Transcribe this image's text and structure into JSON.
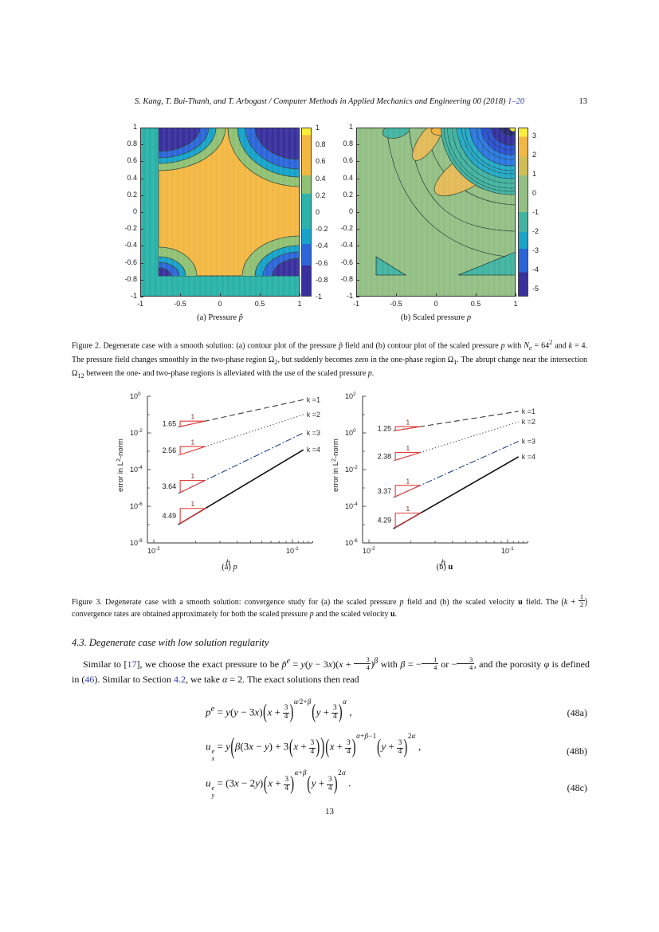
{
  "header": {
    "citation_html": "<i>S. Kang, T. Bui-Thanh, and T. Arbogast / Computer Methods in Applied Mechanics and Engineering 00 (2018) </i><a class='ref' data-name='header-pages-link' data-interactable='true'><i>1–20</i></a>",
    "page_number": "13"
  },
  "palette": {
    "navy": "#38309c",
    "blue": "#2b66d9",
    "cyan": "#16a2c9",
    "teal": "#2db3a9",
    "green": "#8fc073",
    "light_green": "#93bf85",
    "orange": "#f3b843",
    "yellow": "#f9ed3a",
    "triangle_red": "#e03a38",
    "link_blue": "#2e3db5",
    "axis": "#333333"
  },
  "figure2": {
    "sub_captions": [
      "(a)  Pressure <i>p̃</i>",
      "(b)  Scaled pressure <i>p</i>"
    ],
    "caption_html": "Figure 2.  Degenerate case with a smooth solution: (a) contour plot of the pressure <i>p̃</i> field and (b) contour plot of the scaled pressure <i>p</i> with <i>N<sub>e</sub></i> = 64<sup>2</sup> and <i>k</i> = 4. The pressure field changes smoothly in the two-phase region Ω<sub>2</sub>, but suddenly becomes zero in the one-phase region Ω<sub>1</sub>. The abrupt change near the intersection Ω<sub>12</sub> between the one- and two-phase regions is alleviated with the use of the scaled pressure <i>p</i>."
  },
  "figure3": {
    "sub_captions": [
      "(a)  <i>p</i>",
      "(b)  <b>u</b>"
    ],
    "caption_html": "Figure 3.  Degenerate case with a smooth solution: convergence study for (a) the scaled pressure <i>p</i> field and (b) the scaled velocity <b>u</b> field. The <span class='pa'>(</span><i>k</i> + <span class='fr sm'><span class='n'>1</span><span class='d'>2</span></span><span class='pa'>)</span> convergence rates are obtained approximately for both the scaled pressure <i>p</i> and the scaled velocity <b>u</b>."
  },
  "chart_data": [
    {
      "type": "contour",
      "title": "(a) Pressure p̃",
      "xlim": [
        -1,
        1
      ],
      "ylim": [
        -1,
        1
      ],
      "xticks": [
        -1,
        -0.5,
        0,
        0.5,
        1
      ],
      "yticks": [
        1,
        0.8,
        0.6,
        0.4,
        0.2,
        0,
        -0.2,
        -0.4,
        -0.6,
        -0.8,
        -1
      ],
      "colorbar": {
        "ticks": [
          1,
          0.8,
          0.6,
          0.4,
          0.2,
          0,
          -0.2,
          -0.4,
          -0.6,
          -0.8,
          -1
        ],
        "vtop": 1,
        "vbot": -1
      },
      "description": "Orange smooth region in two-phase domain, zero (teal) band along left and bottom one-phase region, dark-blue ring features at the four corners of the interior region"
    },
    {
      "type": "contour",
      "title": "(b) Scaled pressure p",
      "xlim": [
        -1,
        1
      ],
      "ylim": [
        -1,
        1
      ],
      "xticks": [
        -1,
        -0.5,
        0,
        0.5,
        1
      ],
      "yticks": [
        1,
        0.8,
        0.6,
        0.4,
        0.2,
        0,
        -0.2,
        -0.4,
        -0.6,
        -0.8,
        -1
      ],
      "colorbar": {
        "ticks": [
          3,
          2,
          1,
          0,
          -1,
          -2,
          -3,
          -4,
          -5
        ],
        "vtop": 3.4,
        "vbot": -5.4
      },
      "description": "Smooth green field with orange lobes near the top and right, dense negative blue contours converging to the top-right corner, small teal triangles near the bottom corners"
    },
    {
      "type": "line",
      "panel": "a",
      "title": "(a) p",
      "xlabel": "h",
      "ylabel_pre": "error in L",
      "ylabel_sup": "2",
      "ylabel_post": "-norm",
      "xscale": "log",
      "yscale": "log",
      "xtick_exponents": [
        -2,
        -1
      ],
      "ytick_exponents": [
        0,
        -2,
        -4,
        -6,
        -8
      ],
      "ylim_exp": [
        -8,
        0
      ],
      "triangle_h": [
        0.0155,
        0.0235
      ],
      "triangle_top_label": "1",
      "series": [
        {
          "label": "k =1",
          "rate": 1.65,
          "rate_label": "1.65",
          "style": "dashed",
          "points": [
            [
              0.015,
              0.021
            ],
            [
              0.12,
              0.65
            ]
          ]
        },
        {
          "label": "k =2",
          "rate": 2.56,
          "rate_label": "2.56",
          "style": "dotted",
          "points": [
            [
              0.015,
              0.0006
            ],
            [
              0.12,
              0.1
            ]
          ]
        },
        {
          "label": "k =3",
          "rate": 3.64,
          "rate_label": "3.64",
          "style": "dashdot",
          "points": [
            [
              0.015,
              5e-06
            ],
            [
              0.12,
              0.01
            ]
          ]
        },
        {
          "label": "k =4",
          "rate": 4.49,
          "rate_label": "4.49",
          "style": "solid",
          "points": [
            [
              0.015,
              1e-07
            ],
            [
              0.12,
              0.0012
            ]
          ]
        }
      ]
    },
    {
      "type": "line",
      "panel": "b",
      "title": "(b) u",
      "xlabel": "h",
      "ylabel_pre": "error in L",
      "ylabel_sup": "2",
      "ylabel_post": "-norm",
      "xscale": "log",
      "yscale": "log",
      "xtick_exponents": [
        -2,
        -1
      ],
      "ytick_exponents": [
        2,
        0,
        -2,
        -4,
        -6
      ],
      "ylim_exp": [
        -6,
        2
      ],
      "triangle_h": [
        0.0155,
        0.0235
      ],
      "triangle_top_label": "1",
      "series": [
        {
          "label": "k =1",
          "rate": 1.25,
          "rate_label": "1.25",
          "style": "dashed",
          "points": [
            [
              0.015,
              1.3
            ],
            [
              0.12,
              15
            ]
          ]
        },
        {
          "label": "k =2",
          "rate": 2.38,
          "rate_label": "2.38",
          "style": "dotted",
          "points": [
            [
              0.015,
              0.03
            ],
            [
              0.12,
              4
            ]
          ]
        },
        {
          "label": "k =3",
          "rate": 3.37,
          "rate_label": "3.37",
          "style": "dashdot",
          "points": [
            [
              0.015,
              0.0003
            ],
            [
              0.12,
              0.35
            ]
          ]
        },
        {
          "label": "k =4",
          "rate": 4.29,
          "rate_label": "4.29",
          "style": "solid",
          "points": [
            [
              0.015,
              6e-06
            ],
            [
              0.12,
              0.05
            ]
          ]
        }
      ]
    }
  ],
  "section": {
    "heading": "4.3.  Degenerate case with low solution regularity"
  },
  "paragraph_html": "Similar to [<a class='ref' data-name='ref-17' data-interactable='true'>17</a>], we choose the exact pressure to be <i>p̃</i><sup><i>e</i></sup> = <i>y</i>(<i>y</i> − 3<i>x</i>)(<i>x</i> + <span class='fr sm'><span class='n'>3</span><span class='d'>4</span></span>)<sup><i>β</i></sup> with <i>β</i> = −<span class='fr sm'><span class='n'>1</span><span class='d'>4</span></span> or −<span class='fr sm'><span class='n'>3</span><span class='d'>4</span></span>, and the porosity <i>φ</i> is defined in (<a class='ref' data-name='ref-46' data-interactable='true'>46</a>). Similar to Section <a class='ref' data-name='ref-sec-4-2' data-interactable='true'>4.2</a>, we take <i>α</i> = 2. The exact solutions then read",
  "equations": [
    {
      "label": "(48a)",
      "html": "<i>p</i><sup><i>e</i></sup> = <i>y</i>(<i>y</i> − 3<i>x</i>)<span class='bp'>(</span><i>x</i> + <span class='fr'><span class='n'>3</span><span class='d'>4</span></span><span class='bp'>)</span><sup class='ex'><i>α</i>⁄2+<i>β</i></sup><span class='bp'>(</span><i>y</i> + <span class='fr'><span class='n'>3</span><span class='d'>4</span></span><span class='bp'>)</span><sup class='ex'><i>α</i></sup> ,"
    },
    {
      "label": "(48b)",
      "html": "<i>u</i><span class='ss'><span><i>e</i></span><span><i>x</i></span></span> = <i>y</i><span class='bp2'>(</span><i>β</i>(3<i>x</i> − <i>y</i>) + 3<span class='bp'>(</span><i>x</i> + <span class='fr'><span class='n'>3</span><span class='d'>4</span></span><span class='bp'>)</span><span class='bp2'>)</span><span class='bp'>(</span><i>x</i> + <span class='fr'><span class='n'>3</span><span class='d'>4</span></span><span class='bp'>)</span><sup class='ex'><i>α</i>+<i>β</i>−1</sup><span class='bp'>(</span><i>y</i> + <span class='fr'><span class='n'>3</span><span class='d'>4</span></span><span class='bp'>)</span><sup class='ex'>2<i>α</i></sup> ,"
    },
    {
      "label": "(48c)",
      "html": "<i>u</i><span class='ss'><span><i>e</i></span><span><i>y</i></span></span> = (3<i>x</i> − 2<i>y</i>)<span class='bp'>(</span><i>x</i> + <span class='fr'><span class='n'>3</span><span class='d'>4</span></span><span class='bp'>)</span><sup class='ex'><i>α</i>+<i>β</i></sup><span class='bp'>(</span><i>y</i> + <span class='fr'><span class='n'>3</span><span class='d'>4</span></span><span class='bp'>)</span><sup class='ex'>2<i>α</i></sup> ."
    }
  ],
  "footer": {
    "page_number": "13"
  }
}
